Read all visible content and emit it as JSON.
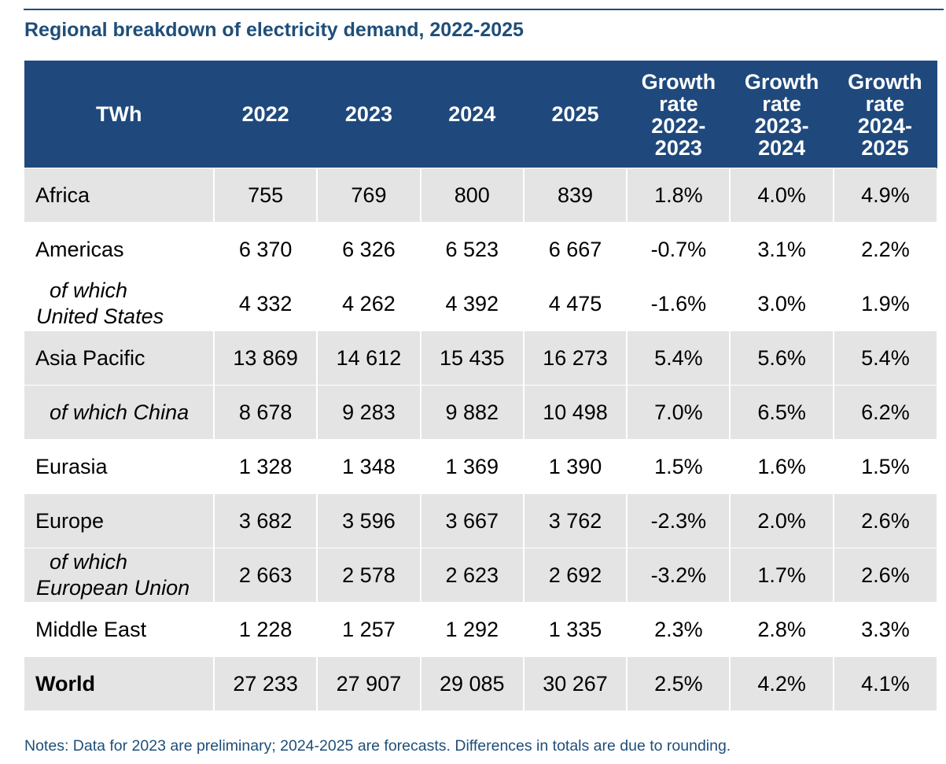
{
  "title": "Regional breakdown of electricity demand, 2022-2025",
  "table": {
    "headers": [
      "TWh",
      "2022",
      "2023",
      "2024",
      "2025",
      "Growth rate 2022-2023",
      "Growth rate 2023-2024",
      "Growth rate 2024-2025"
    ],
    "growth_header_lines": [
      [
        "Growth",
        "rate",
        "2022-",
        "2023"
      ],
      [
        "Growth",
        "rate",
        "2023-",
        "2024"
      ],
      [
        "Growth",
        "rate",
        "2024-",
        "2025"
      ]
    ],
    "rows": [
      {
        "label": "Africa",
        "values": [
          "755",
          "769",
          "800",
          "839",
          "1.8%",
          "4.0%",
          "4.9%"
        ]
      },
      {
        "label": "Americas",
        "values": [
          "6 370",
          "6 326",
          "6 523",
          "6 667",
          "-0.7%",
          "3.1%",
          "2.2%"
        ]
      },
      {
        "label_line1": "of which",
        "label_line2": "United States",
        "values": [
          "4 332",
          "4 262",
          "4 392",
          "4 475",
          "-1.6%",
          "3.0%",
          "1.9%"
        ]
      },
      {
        "label": "Asia Pacific",
        "values": [
          "13 869",
          "14 612",
          "15 435",
          "16 273",
          "5.4%",
          "5.6%",
          "5.4%"
        ]
      },
      {
        "label": "of which China",
        "values": [
          "8 678",
          "9 283",
          "9 882",
          "10 498",
          "7.0%",
          "6.5%",
          "6.2%"
        ]
      },
      {
        "label": "Eurasia",
        "values": [
          "1 328",
          "1 348",
          "1 369",
          "1 390",
          "1.5%",
          "1.6%",
          "1.5%"
        ]
      },
      {
        "label": "Europe",
        "values": [
          "3 682",
          "3 596",
          "3 667",
          "3 762",
          "-2.3%",
          "2.0%",
          "2.6%"
        ]
      },
      {
        "label_line1": "of which",
        "label_line2": "European Union",
        "values": [
          "2 663",
          "2 578",
          "2 623",
          "2 692",
          "-3.2%",
          "1.7%",
          "2.6%"
        ]
      },
      {
        "label": "Middle East",
        "values": [
          "1 228",
          "1 257",
          "1 292",
          "1 335",
          "2.3%",
          "2.8%",
          "3.3%"
        ]
      },
      {
        "label": "World",
        "values": [
          "27 233",
          "27 907",
          "29 085",
          "30 267",
          "2.5%",
          "4.2%",
          "4.1%"
        ]
      }
    ]
  },
  "notes": "Notes: Data for 2023 are preliminary; 2024-2025 are forecasts. Differences in totals are due to rounding.",
  "colors": {
    "header_bg": "#1f497d",
    "title": "#1f4e79",
    "row_shade": "#e4e4e4"
  }
}
